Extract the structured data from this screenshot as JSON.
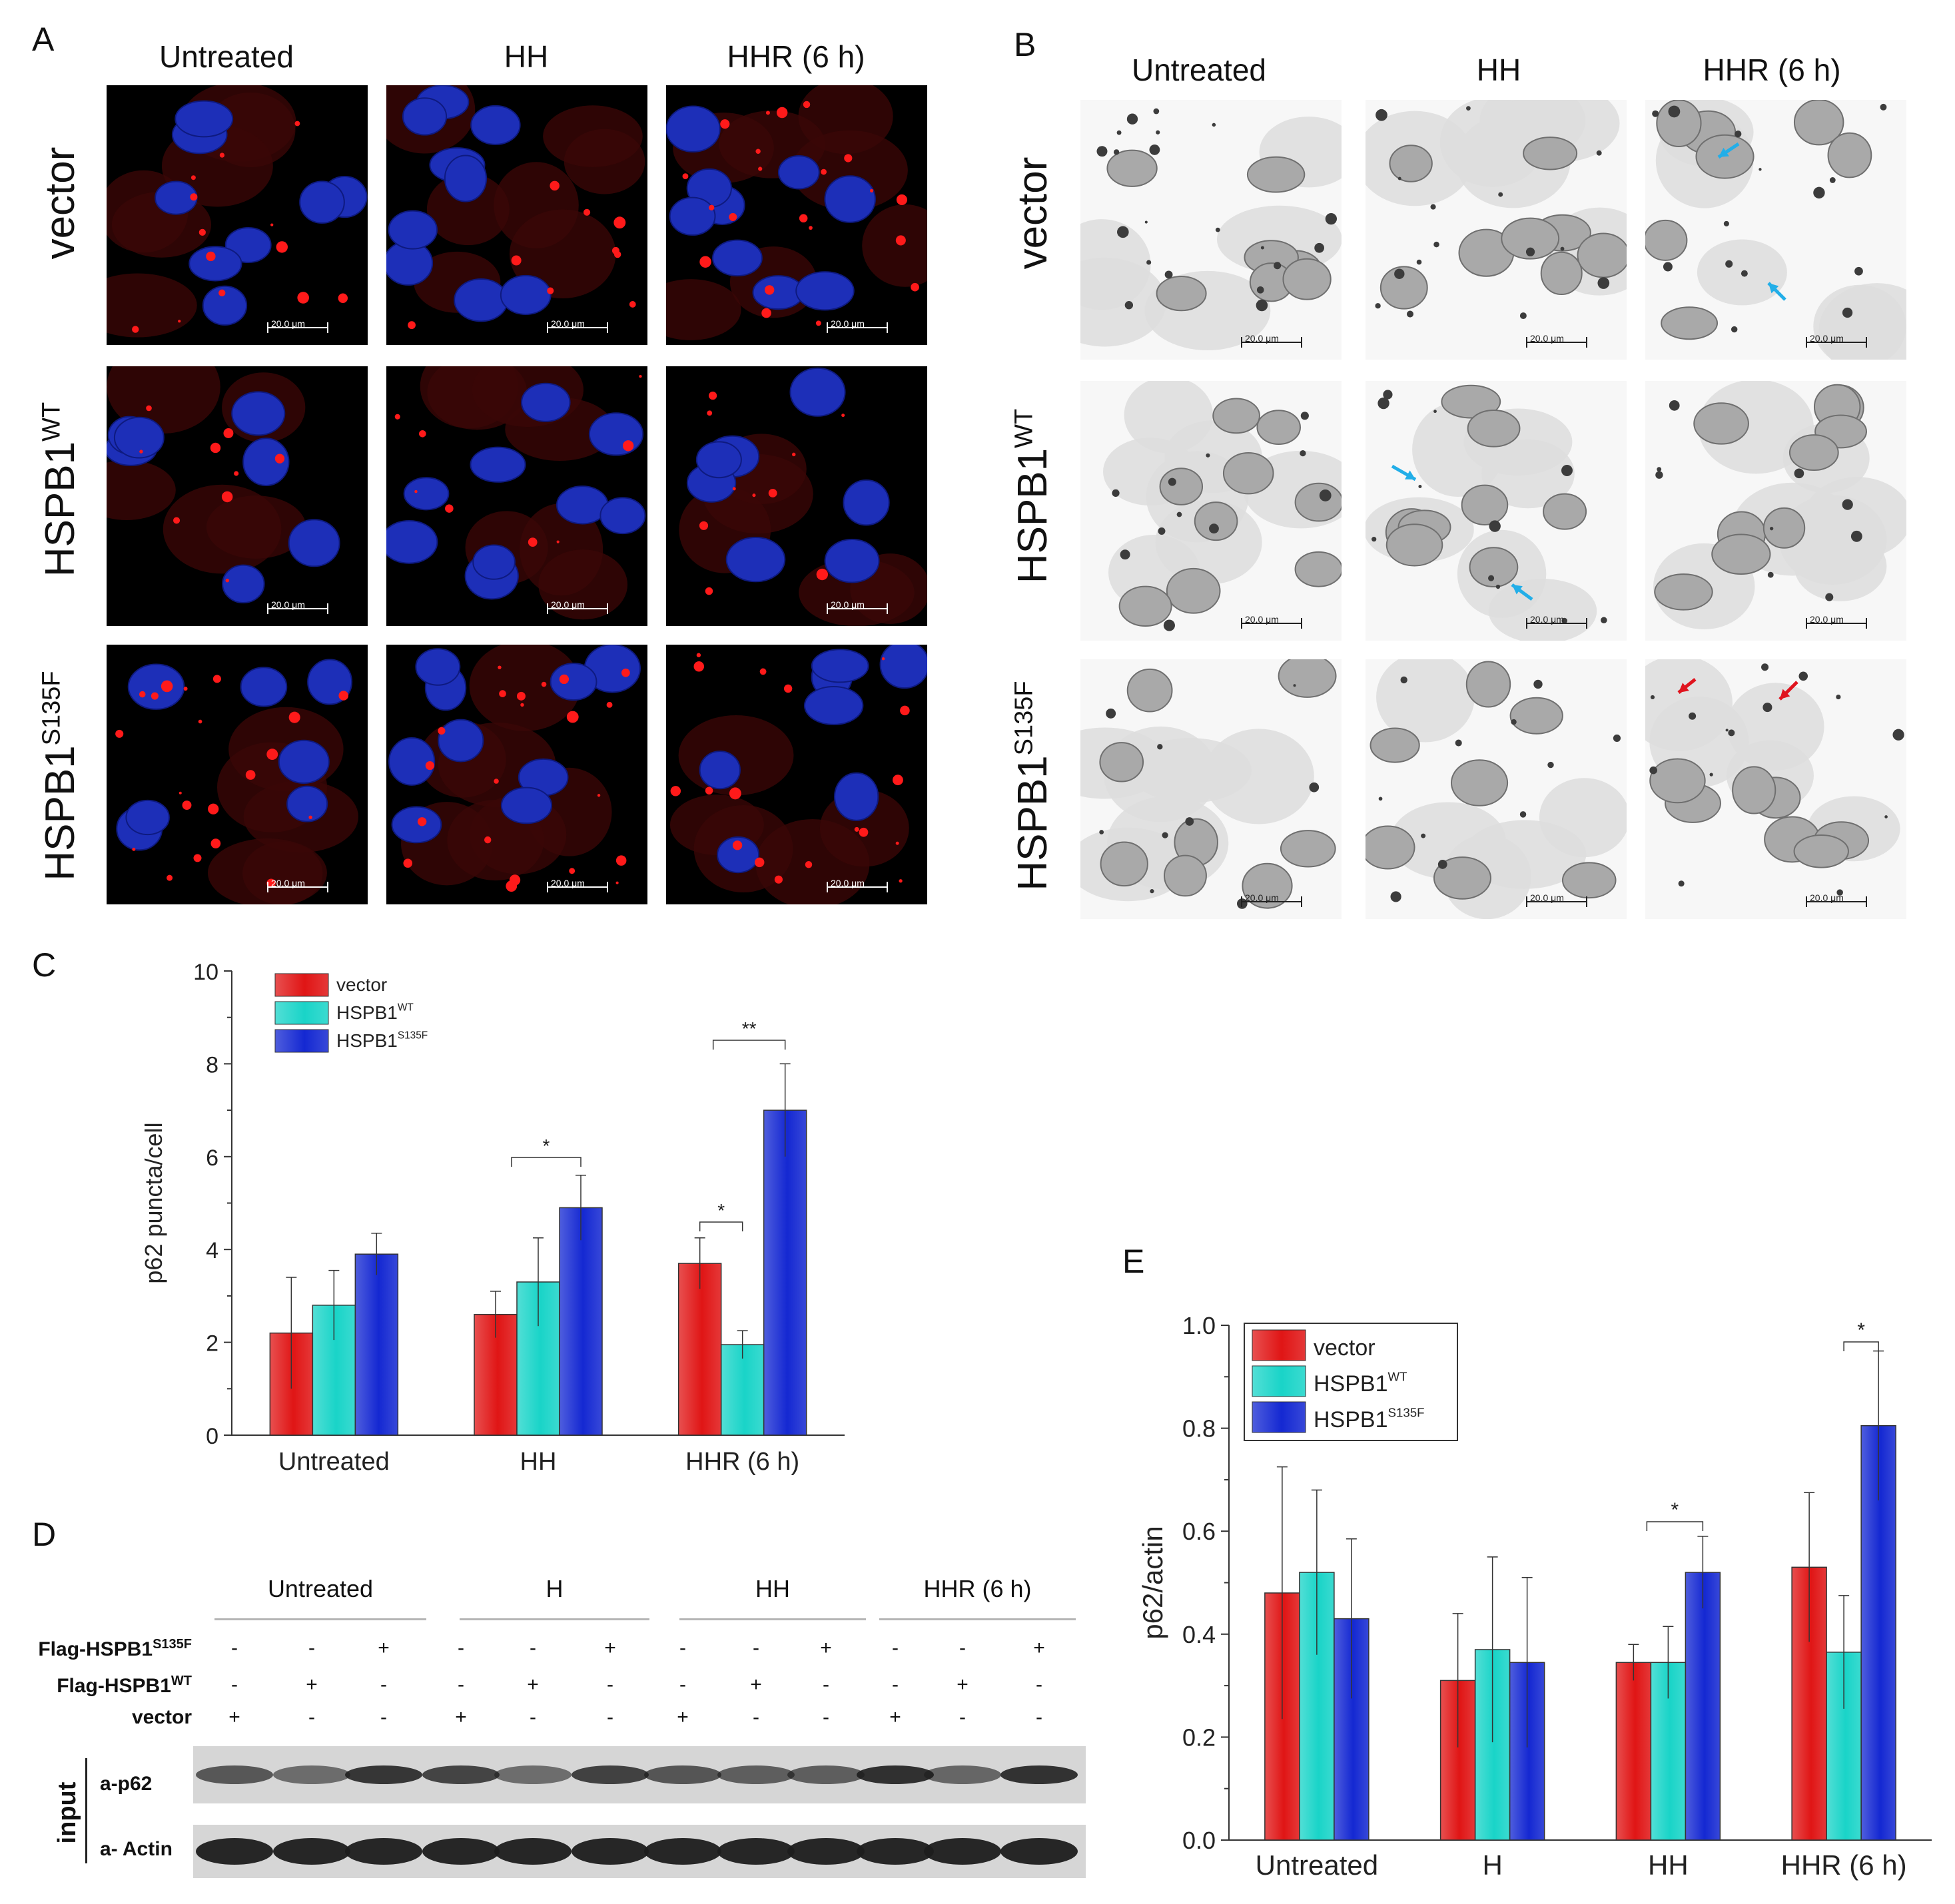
{
  "figure": {
    "panel_a": {
      "letter": "A",
      "columns": [
        "Untreated",
        "HH",
        "HHR (6 h)"
      ],
      "rows": [
        {
          "label": "vector",
          "sup": ""
        },
        {
          "label": "HSPB1",
          "sup": "WT"
        },
        {
          "label": "HSPB1",
          "sup": "S135F"
        }
      ],
      "scale_label": "20.0 μm"
    },
    "panel_b": {
      "letter": "B",
      "columns": [
        "Untreated",
        "HH",
        "HHR (6 h)"
      ],
      "rows": [
        {
          "label": "vector",
          "sup": ""
        },
        {
          "label": "HSPB1",
          "sup": "WT"
        },
        {
          "label": "HSPB1",
          "sup": "S135F"
        }
      ],
      "scale_label": "20.0 μm"
    },
    "panel_c_letter": "C",
    "panel_d": {
      "letter": "D",
      "groups": [
        "Untreated",
        "H",
        "HH",
        "HHR (6 h)"
      ],
      "row_labels": [
        {
          "label": "Flag-HSPB1",
          "sup": "S135F"
        },
        {
          "label": "Flag-HSPB1",
          "sup": "WT"
        },
        {
          "label": "vector",
          "sup": ""
        }
      ],
      "signs": [
        [
          "-",
          "-",
          "+",
          "-",
          "-",
          "+",
          "-",
          "-",
          "+",
          "-",
          "-",
          "+"
        ],
        [
          "-",
          "+",
          "-",
          "-",
          "+",
          "-",
          "-",
          "+",
          "-",
          "-",
          "+",
          "-"
        ],
        [
          "+",
          "-",
          "-",
          "+",
          "-",
          "-",
          "+",
          "-",
          "-",
          "+",
          "-",
          "-"
        ]
      ],
      "side_label": "input",
      "blot_labels": [
        "a-p62",
        "a- Actin"
      ]
    },
    "panel_e_letter": "E"
  },
  "colors": {
    "vector": "#e01515",
    "wt": "#19d4c8",
    "s135f": "#1428d2",
    "cyan_arrow": "#22aee8",
    "red_arrow": "#e0141e"
  },
  "chart_data": [
    {
      "id": "C",
      "type": "bar",
      "categories": [
        "Untreated",
        "HH",
        "HHR (6 h)"
      ],
      "series": [
        {
          "name": "vector",
          "sup": "",
          "values": [
            2.2,
            2.6,
            3.7
          ],
          "errors": [
            1.2,
            0.5,
            0.55
          ]
        },
        {
          "name": "HSPB1",
          "sup": "WT",
          "values": [
            2.8,
            3.3,
            1.95
          ],
          "errors": [
            0.75,
            0.95,
            0.3
          ]
        },
        {
          "name": "HSPB1",
          "sup": "S135F",
          "values": [
            3.9,
            4.9,
            7.0
          ],
          "errors": [
            0.45,
            0.7,
            1.0
          ]
        }
      ],
      "ylabel": "p62 puncta/cell",
      "ylim": [
        0,
        10
      ],
      "yticks": [
        "0",
        "2",
        "4",
        "6",
        "8",
        "10"
      ],
      "significance": [
        "*",
        "*",
        "**"
      ]
    },
    {
      "id": "E",
      "type": "bar",
      "categories": [
        "Untreated",
        "H",
        "HH",
        "HHR (6 h)"
      ],
      "series": [
        {
          "name": "vector",
          "sup": "",
          "values": [
            0.48,
            0.31,
            0.345,
            0.53
          ],
          "errors": [
            0.245,
            0.13,
            0.035,
            0.145
          ]
        },
        {
          "name": "HSPB1",
          "sup": "WT",
          "values": [
            0.52,
            0.37,
            0.345,
            0.365
          ],
          "errors": [
            0.16,
            0.18,
            0.07,
            0.11
          ]
        },
        {
          "name": "HSPB1",
          "sup": "S135F",
          "values": [
            0.43,
            0.345,
            0.52,
            0.805
          ],
          "errors": [
            0.155,
            0.165,
            0.07,
            0.145
          ]
        }
      ],
      "ylabel": "p62/actin",
      "ylim": [
        0,
        1.0
      ],
      "yticks": [
        "0.0",
        "0.2",
        "0.4",
        "0.6",
        "0.8",
        "1.0"
      ],
      "significance": [
        "*",
        "*"
      ]
    }
  ]
}
